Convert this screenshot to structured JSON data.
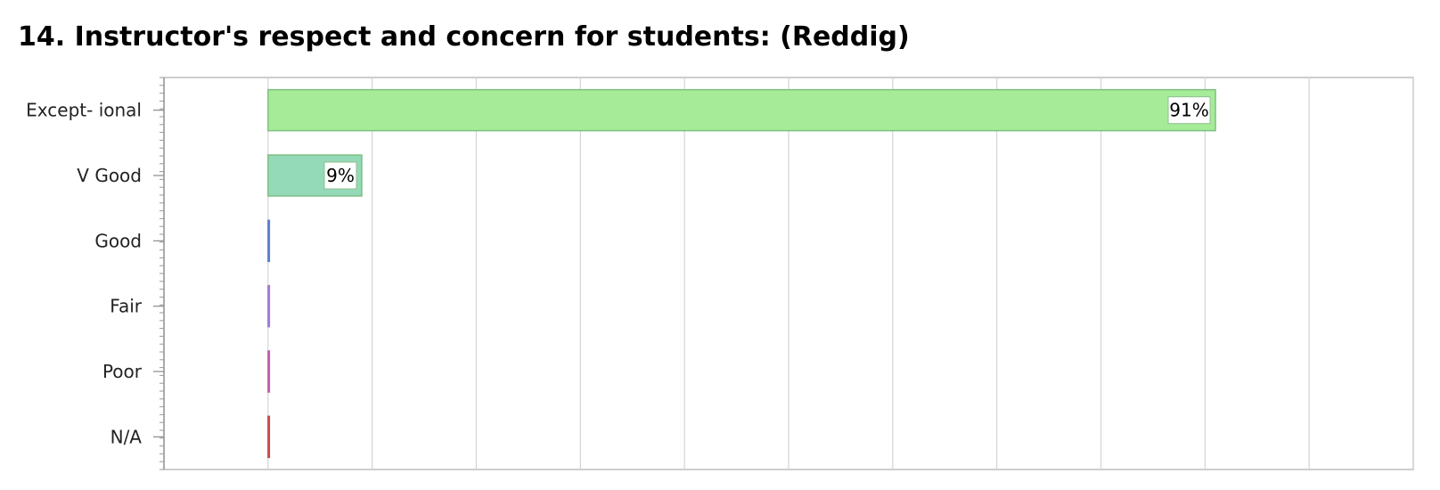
{
  "title": "14. Instructor's respect and concern for students: (Reddig)",
  "chart_data": {
    "type": "bar",
    "orientation": "horizontal",
    "categories": [
      "Except- ional",
      "V Good",
      "Good",
      "Fair",
      "Poor",
      "N/A"
    ],
    "values": [
      91,
      9,
      0,
      0,
      0,
      0
    ],
    "value_labels": [
      "91%",
      "9%",
      "",
      "",
      "",
      ""
    ],
    "colors": [
      "#a6ec98",
      "#94d9b8",
      "#5b7fd0",
      "#a07ad8",
      "#c560a8",
      "#c84a4a"
    ],
    "xlim": [
      -10,
      110
    ],
    "grid": true,
    "legend": "none"
  }
}
